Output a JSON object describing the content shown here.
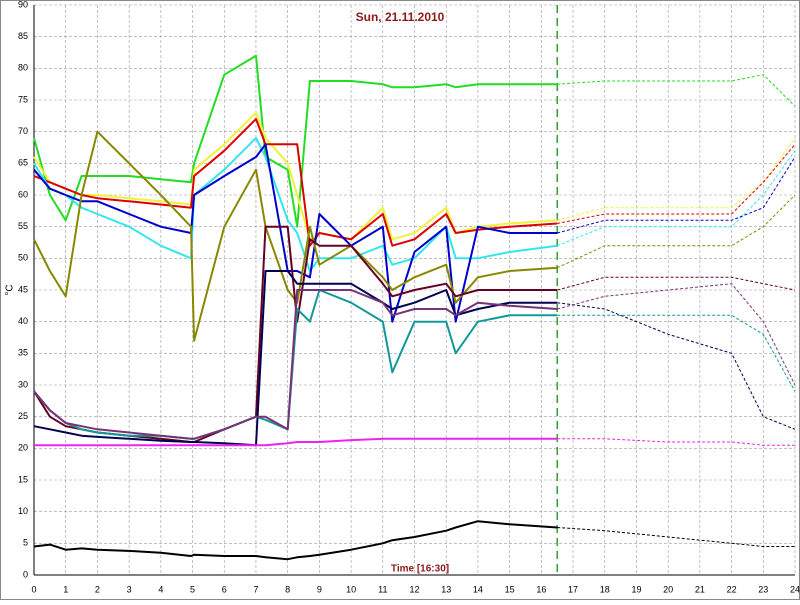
{
  "chart_data": {
    "type": "line",
    "title": "Sun, 21.11.2010",
    "x_label": "Time [16:30]",
    "y_label": "°C",
    "xlim": [
      0,
      24
    ],
    "ylim": [
      0,
      90
    ],
    "xticks": [
      0,
      1,
      2,
      3,
      4,
      5,
      6,
      7,
      8,
      9,
      10,
      11,
      12,
      13,
      14,
      15,
      16,
      17,
      18,
      19,
      20,
      21,
      22,
      23,
      24
    ],
    "yticks": [
      0,
      5,
      10,
      15,
      20,
      25,
      30,
      35,
      40,
      45,
      50,
      55,
      60,
      65,
      70,
      75,
      80,
      85,
      90
    ],
    "grid": true,
    "marker_x": 16.5,
    "x": [
      0,
      0.5,
      1,
      1.5,
      2,
      3,
      4,
      4.95,
      5.05,
      6,
      7,
      7.3,
      8,
      8.3,
      8.7,
      9,
      10,
      11,
      11.3,
      12,
      13,
      13.3,
      14,
      15,
      16.5,
      18,
      20,
      22,
      23,
      24
    ],
    "series": [
      {
        "color": "#22dd22",
        "values": [
          69,
          60,
          56,
          63,
          63,
          63,
          62.5,
          62,
          65,
          79,
          82,
          66,
          64,
          55,
          78,
          78,
          78,
          77.5,
          77,
          77,
          77.5,
          77,
          77.5,
          77.5,
          77.5,
          78,
          78,
          78,
          79,
          74
        ]
      },
      {
        "color": "#f2f23a",
        "values": [
          66,
          62,
          61,
          60,
          60,
          59.5,
          59,
          58.5,
          64,
          68,
          73,
          69,
          65,
          60,
          53,
          54,
          53,
          58,
          53,
          54,
          58,
          54,
          55,
          55.5,
          56,
          58,
          58,
          58,
          62,
          69
        ]
      },
      {
        "color": "#dd0000",
        "values": [
          63,
          62,
          61,
          60,
          59.5,
          59,
          58.5,
          58,
          63,
          67,
          72,
          68,
          68,
          68,
          52,
          54,
          53,
          57,
          52,
          53,
          57,
          54,
          54.5,
          55,
          55.5,
          57,
          57,
          57,
          62,
          68
        ]
      },
      {
        "color": "#33e6ee",
        "values": [
          65,
          61,
          60,
          58,
          57,
          55,
          52,
          50,
          60,
          64,
          69,
          66,
          56,
          54,
          48,
          50,
          50,
          52,
          49,
          50,
          55,
          50,
          50,
          51,
          52,
          55,
          55,
          55,
          60,
          67
        ]
      },
      {
        "color": "#0000cc",
        "values": [
          64,
          61,
          60,
          59,
          59,
          57,
          55,
          54,
          60,
          63,
          66,
          68,
          48,
          48,
          47,
          57,
          52,
          55,
          40,
          51,
          55,
          40,
          55,
          54,
          54,
          56,
          56,
          56,
          58,
          66
        ]
      },
      {
        "color": "#888800",
        "values": [
          53,
          48,
          44,
          60,
          70,
          65,
          60,
          55,
          37,
          55,
          64,
          55,
          45,
          43,
          55,
          49,
          52,
          47,
          45,
          47,
          49,
          43,
          47,
          48,
          48.5,
          52,
          52,
          52,
          55,
          60
        ]
      },
      {
        "color": "#660022",
        "values": [
          29,
          25,
          23.5,
          23,
          22.5,
          22,
          21.5,
          21,
          21,
          23,
          25,
          55,
          55,
          40,
          53,
          52,
          52,
          46,
          44,
          45,
          46,
          44,
          45,
          45,
          45,
          47,
          47,
          47,
          46,
          45
        ]
      },
      {
        "color": "#000055",
        "values": [
          23.5,
          23,
          22.5,
          22,
          21.8,
          21.5,
          21.2,
          21,
          21,
          20.8,
          20.5,
          48,
          48,
          46,
          46,
          46,
          46,
          43,
          42,
          43,
          45,
          41,
          42,
          43,
          43,
          42,
          38,
          35,
          25,
          23
        ]
      },
      {
        "color": "#119999",
        "values": [
          29,
          26,
          24,
          23,
          22.5,
          22,
          22,
          21.5,
          21.5,
          23,
          25,
          24.5,
          23,
          42,
          40,
          45,
          43,
          40,
          32,
          40,
          40,
          35,
          40,
          41,
          41,
          41,
          41,
          41,
          38,
          29
        ]
      },
      {
        "color": "#773377",
        "values": [
          29,
          26,
          24,
          23.5,
          23,
          22.5,
          22,
          21.5,
          21.5,
          23,
          25,
          25,
          23,
          45,
          45,
          45,
          45,
          43,
          41,
          42,
          42,
          41,
          43,
          42.5,
          42,
          44,
          45,
          46,
          40,
          30
        ]
      },
      {
        "color": "#ee22ee",
        "values": [
          20.5,
          20.5,
          20.5,
          20.5,
          20.5,
          20.5,
          20.5,
          20.5,
          20.5,
          20.5,
          20.5,
          20.5,
          20.8,
          21,
          21,
          21,
          21.3,
          21.5,
          21.5,
          21.5,
          21.5,
          21.5,
          21.5,
          21.5,
          21.5,
          21.5,
          21,
          21,
          20.5,
          20.5
        ]
      },
      {
        "color": "#000000",
        "values": [
          4.5,
          4.8,
          4,
          4.2,
          4,
          3.8,
          3.5,
          3,
          3.2,
          3,
          3,
          2.8,
          2.5,
          2.8,
          3,
          3.2,
          4,
          5,
          5.5,
          6,
          7,
          7.5,
          8.5,
          8,
          7.5,
          7,
          6,
          5,
          4.5,
          4.5
        ]
      }
    ]
  }
}
